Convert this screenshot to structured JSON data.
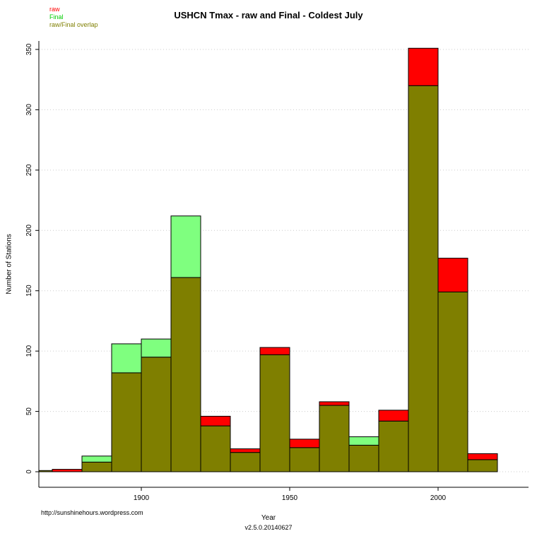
{
  "title": "USHCN Tmax - raw and Final - Coldest July",
  "legend": {
    "items": [
      {
        "label": "raw",
        "color": "#FF0000"
      },
      {
        "label": "Final",
        "color": "#00CC00"
      },
      {
        "label": "raw/Final overlap",
        "color": "#7F7F00"
      }
    ]
  },
  "footer": {
    "url": "http://sunshinehours.wordpress.com",
    "xlabel": "Year",
    "version": "v2.5.0.20140627"
  },
  "chart_data": {
    "type": "bar",
    "title": "USHCN Tmax - raw and Final - Coldest July",
    "xlabel": "Year",
    "ylabel": "Number of Stations",
    "bin_width_years": 10,
    "bin_starts": [
      1860,
      1870,
      1880,
      1890,
      1900,
      1910,
      1920,
      1930,
      1940,
      1950,
      1960,
      1970,
      1980,
      1990,
      2000,
      2010
    ],
    "series": [
      {
        "name": "raw",
        "color": "#FF0000",
        "values": [
          1,
          2,
          8,
          82,
          95,
          161,
          46,
          19,
          103,
          27,
          58,
          22,
          51,
          351,
          177,
          15
        ]
      },
      {
        "name": "Final",
        "color": "#7FFF7F",
        "values": [
          1,
          0,
          13,
          106,
          110,
          212,
          38,
          16,
          97,
          20,
          55,
          29,
          42,
          320,
          149,
          10
        ]
      }
    ],
    "overlap_color": "#7F7F00",
    "overlap_label": "raw/Final overlap",
    "x_ticks": [
      1900,
      1950,
      2000
    ],
    "y_ticks": [
      0,
      50,
      100,
      150,
      200,
      250,
      300,
      350
    ],
    "ylim": [
      0,
      365
    ],
    "grid": true,
    "legend_position": "top-left"
  }
}
